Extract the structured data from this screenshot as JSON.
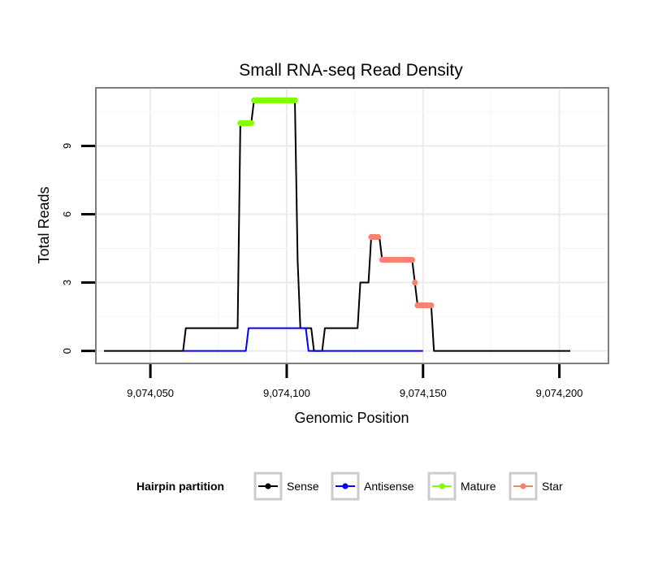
{
  "chart_data": {
    "type": "line",
    "title": "Small RNA-seq Read Density",
    "xlabel": "Genomic Position",
    "ylabel": "Total Reads",
    "xlim": [
      9074030,
      9074218
    ],
    "ylim": [
      -0.55,
      11.55
    ],
    "x_ticks": [
      9074050,
      9074100,
      9074150,
      9074200
    ],
    "x_tick_labels": [
      "9,074,050",
      "9,074,100",
      "9,074,150",
      "9,074,200"
    ],
    "y_ticks": [
      0,
      3,
      6,
      9
    ],
    "y_tick_labels": [
      "0",
      "3",
      "6",
      "9"
    ],
    "grid": true,
    "legend": {
      "title": "Hairpin partition",
      "placement": "bottom",
      "entries": [
        {
          "name": "Sense",
          "color": "#000000"
        },
        {
          "name": "Antisense",
          "color": "#0000ff"
        },
        {
          "name": "Mature",
          "color": "#7fff00"
        },
        {
          "name": "Star",
          "color": "#fa8072"
        }
      ]
    },
    "series": [
      {
        "name": "Sense",
        "kind": "line",
        "color": "#000000",
        "points": [
          [
            9074033,
            0
          ],
          [
            9074062,
            0
          ],
          [
            9074063,
            1
          ],
          [
            9074082,
            1
          ],
          [
            9074083,
            10
          ],
          [
            9074087,
            10
          ],
          [
            9074088,
            11
          ],
          [
            9074103,
            11
          ],
          [
            9074104,
            4
          ],
          [
            9074105,
            1
          ],
          [
            9074109,
            1
          ],
          [
            9074110,
            0
          ],
          [
            9074113,
            0
          ],
          [
            9074114,
            1
          ],
          [
            9074126,
            1
          ],
          [
            9074127,
            3
          ],
          [
            9074130,
            3
          ],
          [
            9074131,
            5
          ],
          [
            9074134,
            5
          ],
          [
            9074135,
            4
          ],
          [
            9074146,
            4
          ],
          [
            9074147,
            3
          ],
          [
            9074148,
            2
          ],
          [
            9074153,
            2
          ],
          [
            9074154,
            0
          ],
          [
            9074204,
            0
          ]
        ]
      },
      {
        "name": "Antisense",
        "kind": "line",
        "color": "#0000ff",
        "points": [
          [
            9074062,
            0
          ],
          [
            9074085,
            0
          ],
          [
            9074086,
            1
          ],
          [
            9074107,
            1
          ],
          [
            9074108,
            0
          ],
          [
            9074150,
            0
          ]
        ]
      },
      {
        "name": "Mature",
        "kind": "points",
        "color": "#7fff00",
        "points": [
          [
            9074083,
            10
          ],
          [
            9074083.5,
            10
          ],
          [
            9074084,
            10
          ],
          [
            9074084.5,
            10
          ],
          [
            9074085,
            10
          ],
          [
            9074085.5,
            10
          ],
          [
            9074086,
            10
          ],
          [
            9074086.5,
            10
          ],
          [
            9074087,
            10
          ],
          [
            9074088,
            11
          ],
          [
            9074088.5,
            11
          ],
          [
            9074089,
            11
          ],
          [
            9074089.5,
            11
          ],
          [
            9074090,
            11
          ],
          [
            9074090.5,
            11
          ],
          [
            9074091,
            11
          ],
          [
            9074091.5,
            11
          ],
          [
            9074092,
            11
          ],
          [
            9074092.5,
            11
          ],
          [
            9074093,
            11
          ],
          [
            9074093.5,
            11
          ],
          [
            9074094,
            11
          ],
          [
            9074094.5,
            11
          ],
          [
            9074095,
            11
          ],
          [
            9074095.5,
            11
          ],
          [
            9074096,
            11
          ],
          [
            9074096.5,
            11
          ],
          [
            9074097,
            11
          ],
          [
            9074097.5,
            11
          ],
          [
            9074098,
            11
          ],
          [
            9074098.5,
            11
          ],
          [
            9074099,
            11
          ],
          [
            9074099.5,
            11
          ],
          [
            9074100,
            11
          ],
          [
            9074100.5,
            11
          ],
          [
            9074101,
            11
          ],
          [
            9074101.5,
            11
          ],
          [
            9074102,
            11
          ],
          [
            9074102.5,
            11
          ],
          [
            9074103,
            11
          ]
        ]
      },
      {
        "name": "Star",
        "kind": "points",
        "color": "#fa8072",
        "points": [
          [
            9074131,
            5
          ],
          [
            9074131.5,
            5
          ],
          [
            9074132,
            5
          ],
          [
            9074132.5,
            5
          ],
          [
            9074133,
            5
          ],
          [
            9074133.5,
            5
          ],
          [
            9074135,
            4
          ],
          [
            9074135.5,
            4
          ],
          [
            9074136,
            4
          ],
          [
            9074136.5,
            4
          ],
          [
            9074137,
            4
          ],
          [
            9074137.5,
            4
          ],
          [
            9074138,
            4
          ],
          [
            9074138.5,
            4
          ],
          [
            9074139,
            4
          ],
          [
            9074139.5,
            4
          ],
          [
            9074140,
            4
          ],
          [
            9074140.5,
            4
          ],
          [
            9074141,
            4
          ],
          [
            9074141.5,
            4
          ],
          [
            9074142,
            4
          ],
          [
            9074142.5,
            4
          ],
          [
            9074143,
            4
          ],
          [
            9074143.5,
            4
          ],
          [
            9074144,
            4
          ],
          [
            9074144.5,
            4
          ],
          [
            9074145,
            4
          ],
          [
            9074145.5,
            4
          ],
          [
            9074146,
            4
          ],
          [
            9074147,
            3
          ],
          [
            9074148,
            2
          ],
          [
            9074148.5,
            2
          ],
          [
            9074149,
            2
          ],
          [
            9074149.5,
            2
          ],
          [
            9074150,
            2
          ],
          [
            9074150.5,
            2
          ],
          [
            9074151,
            2
          ],
          [
            9074151.5,
            2
          ],
          [
            9074152,
            2
          ],
          [
            9074152.5,
            2
          ],
          [
            9074153,
            2
          ]
        ]
      }
    ]
  }
}
